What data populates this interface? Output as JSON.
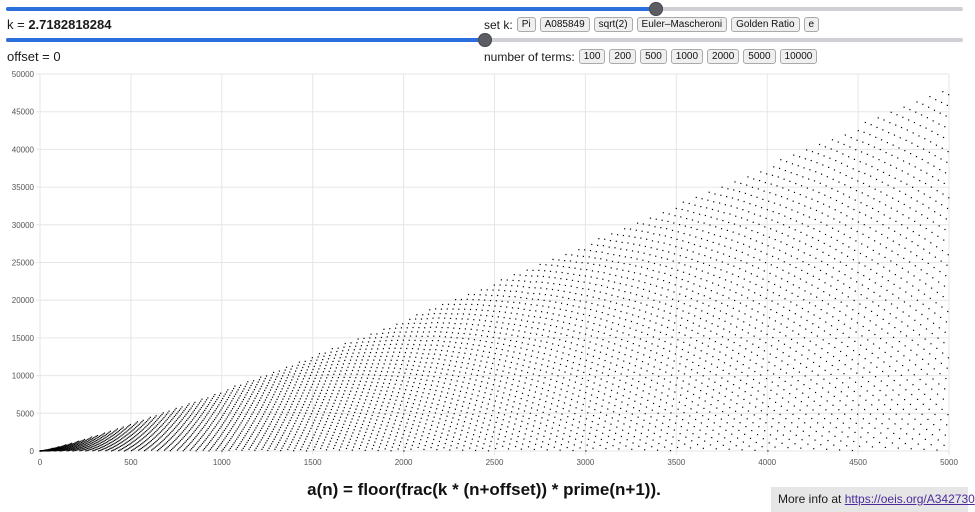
{
  "controls": {
    "k": {
      "label": "k = ",
      "value_text": "2.7182818284",
      "value": 2.7182818284,
      "min": 0,
      "max": 4
    },
    "offset": {
      "label": "offset = ",
      "value_text": "0",
      "value": 0,
      "min": -500,
      "max": 500
    },
    "set_k": {
      "label": "set k:",
      "buttons": [
        "Pi",
        "A085849",
        "sqrt(2)",
        "Euler–Mascheroni",
        "Golden Ratio",
        "e"
      ]
    },
    "num_terms": {
      "label": "number of terms:",
      "buttons": [
        "100",
        "200",
        "500",
        "1000",
        "2000",
        "5000",
        "10000"
      ]
    }
  },
  "chart_data": {
    "type": "scatter",
    "title": "",
    "xlabel": "",
    "ylabel": "",
    "xlim": [
      0,
      5000
    ],
    "ylim": [
      0,
      50000
    ],
    "x_ticks": [
      "0",
      "500",
      "1000",
      "1500",
      "2000",
      "2500",
      "3000",
      "3500",
      "4000",
      "4500",
      "5000"
    ],
    "y_ticks": [
      "0",
      "5000",
      "10000",
      "15000",
      "20000",
      "25000",
      "30000",
      "35000",
      "40000",
      "45000",
      "50000"
    ],
    "grid": true,
    "legend": "none",
    "series": [
      {
        "formula": "floor(frac(k * (n+offset)) * prime(n+1))",
        "k": 2.7182818284,
        "offset": 0,
        "n_range": [
          0,
          5000
        ],
        "color": "#000000"
      }
    ]
  },
  "formula": "a(n) = floor(frac(k * (n+offset)) * prime(n+1)).",
  "footer": {
    "text": "More info at ",
    "link": "https://oeis.org/A342730"
  }
}
